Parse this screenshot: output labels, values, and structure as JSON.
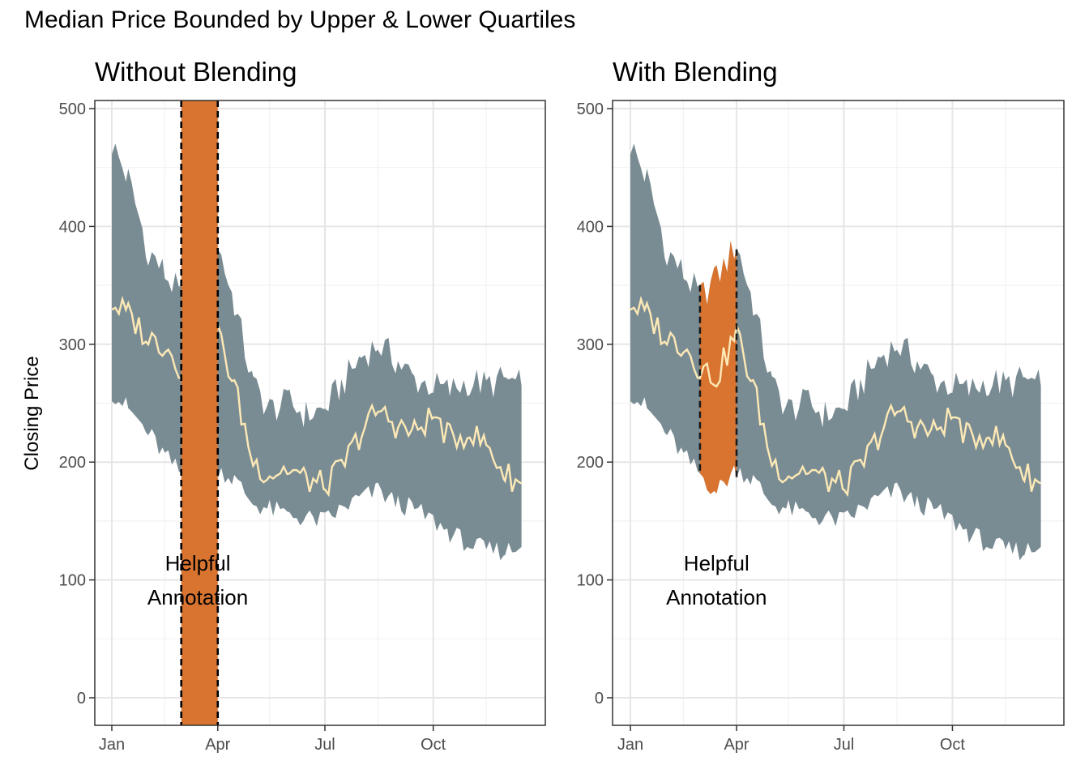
{
  "title": "Median Price Bounded by Upper & Lower Quartiles",
  "colors": {
    "ribbon": "#7a8c93",
    "median_line": "#fde9b6",
    "highlight": "#d87430",
    "panel_border": "#333333",
    "grid_major": "#e6e6e6",
    "grid_minor": "#f2f2f2"
  },
  "chart_data": [
    {
      "type": "area",
      "title": "Without Blending",
      "ylabel": "Closing Price",
      "ylim": [
        0,
        500
      ],
      "y_ticks": [
        0,
        100,
        200,
        300,
        400,
        500
      ],
      "x_ticks": [
        "Jan",
        "Apr",
        "Jul",
        "Oct"
      ],
      "highlight": {
        "x_start": "Mar 1",
        "x_end": "Apr 1",
        "y_range": [
          0,
          500
        ],
        "style": "full-height rectangle with dashed borders"
      },
      "annotation": {
        "text_lines": [
          "Helpful",
          "Annotation"
        ],
        "x": "Mar 15",
        "y": 100
      },
      "series": [
        {
          "name": "Median",
          "x": [
            "Jan 1",
            "Jan 15",
            "Feb 1",
            "Feb 15",
            "Mar 1",
            "Mar 15",
            "Apr 1",
            "Apr 15",
            "May 1",
            "May 15",
            "Jun 1",
            "Jun 15",
            "Jul 1",
            "Jul 15",
            "Aug 1",
            "Aug 15",
            "Sep 1",
            "Sep 15",
            "Oct 1",
            "Oct 15",
            "Nov 1",
            "Nov 15",
            "Dec 1",
            "Dec 15"
          ],
          "values": [
            335,
            325,
            305,
            300,
            280,
            272,
            310,
            265,
            200,
            190,
            195,
            185,
            180,
            195,
            225,
            245,
            230,
            225,
            240,
            220,
            225,
            215,
            190,
            182
          ]
        },
        {
          "name": "Upper Quartile",
          "x": [
            "Jan 1",
            "Jan 15",
            "Feb 1",
            "Feb 15",
            "Mar 1",
            "Mar 15",
            "Apr 1",
            "Apr 15",
            "May 1",
            "May 15",
            "Jun 1",
            "Jun 15",
            "Jul 1",
            "Jul 15",
            "Aug 1",
            "Aug 15",
            "Sep 1",
            "Sep 15",
            "Oct 1",
            "Oct 15",
            "Nov 1",
            "Nov 15",
            "Dec 1",
            "Dec 15"
          ],
          "values": [
            470,
            440,
            380,
            360,
            340,
            355,
            385,
            335,
            265,
            245,
            250,
            240,
            245,
            265,
            290,
            300,
            285,
            270,
            265,
            260,
            270,
            265,
            270,
            265
          ]
        },
        {
          "name": "Lower Quartile",
          "x": [
            "Jan 1",
            "Jan 15",
            "Feb 1",
            "Feb 15",
            "Mar 1",
            "Mar 15",
            "Apr 1",
            "Apr 15",
            "May 1",
            "May 15",
            "Jun 1",
            "Jun 15",
            "Jul 1",
            "Jul 15",
            "Aug 1",
            "Aug 15",
            "Sep 1",
            "Sep 15",
            "Oct 1",
            "Oct 15",
            "Nov 1",
            "Nov 15",
            "Dec 1",
            "Dec 15"
          ],
          "values": [
            260,
            245,
            225,
            205,
            190,
            175,
            195,
            185,
            165,
            160,
            155,
            152,
            150,
            160,
            170,
            175,
            165,
            160,
            150,
            140,
            130,
            125,
            125,
            128
          ]
        }
      ]
    },
    {
      "type": "area",
      "title": "With Blending",
      "ylim": [
        0,
        500
      ],
      "y_ticks": [
        0,
        100,
        200,
        300,
        400,
        500
      ],
      "x_ticks": [
        "Jan",
        "Apr",
        "Jul",
        "Oct"
      ],
      "highlight": {
        "x_start": "Mar 1",
        "x_end": "Apr 1",
        "style": "ribbon recolored with dashed borders"
      },
      "annotation": {
        "text_lines": [
          "Helpful",
          "Annotation"
        ],
        "x": "Mar 15",
        "y": 100
      },
      "series": [
        {
          "name": "Median",
          "x": [
            "Jan 1",
            "Jan 15",
            "Feb 1",
            "Feb 15",
            "Mar 1",
            "Mar 15",
            "Apr 1",
            "Apr 15",
            "May 1",
            "May 15",
            "Jun 1",
            "Jun 15",
            "Jul 1",
            "Jul 15",
            "Aug 1",
            "Aug 15",
            "Sep 1",
            "Sep 15",
            "Oct 1",
            "Oct 15",
            "Nov 1",
            "Nov 15",
            "Dec 1",
            "Dec 15"
          ],
          "values": [
            335,
            325,
            305,
            300,
            280,
            272,
            310,
            265,
            200,
            190,
            195,
            185,
            180,
            195,
            225,
            245,
            230,
            225,
            240,
            220,
            225,
            215,
            190,
            182
          ]
        },
        {
          "name": "Upper Quartile",
          "x": [
            "Jan 1",
            "Jan 15",
            "Feb 1",
            "Feb 15",
            "Mar 1",
            "Mar 15",
            "Apr 1",
            "Apr 15",
            "May 1",
            "May 15",
            "Jun 1",
            "Jun 15",
            "Jul 1",
            "Jul 15",
            "Aug 1",
            "Aug 15",
            "Sep 1",
            "Sep 15",
            "Oct 1",
            "Oct 15",
            "Nov 1",
            "Nov 15",
            "Dec 1",
            "Dec 15"
          ],
          "values": [
            470,
            440,
            380,
            360,
            340,
            355,
            385,
            335,
            265,
            245,
            250,
            240,
            245,
            265,
            290,
            300,
            285,
            270,
            265,
            260,
            270,
            265,
            270,
            265
          ]
        },
        {
          "name": "Lower Quartile",
          "x": [
            "Jan 1",
            "Jan 15",
            "Feb 1",
            "Feb 15",
            "Mar 1",
            "Mar 15",
            "Apr 1",
            "Apr 15",
            "May 1",
            "May 15",
            "Jun 1",
            "Jun 15",
            "Jul 1",
            "Jul 15",
            "Aug 1",
            "Aug 15",
            "Sep 1",
            "Sep 15",
            "Oct 1",
            "Oct 15",
            "Nov 1",
            "Nov 15",
            "Dec 1",
            "Dec 15"
          ],
          "values": [
            260,
            245,
            225,
            205,
            190,
            175,
            195,
            185,
            165,
            160,
            155,
            152,
            150,
            160,
            170,
            175,
            165,
            160,
            150,
            140,
            130,
            125,
            125,
            128
          ]
        }
      ]
    }
  ]
}
